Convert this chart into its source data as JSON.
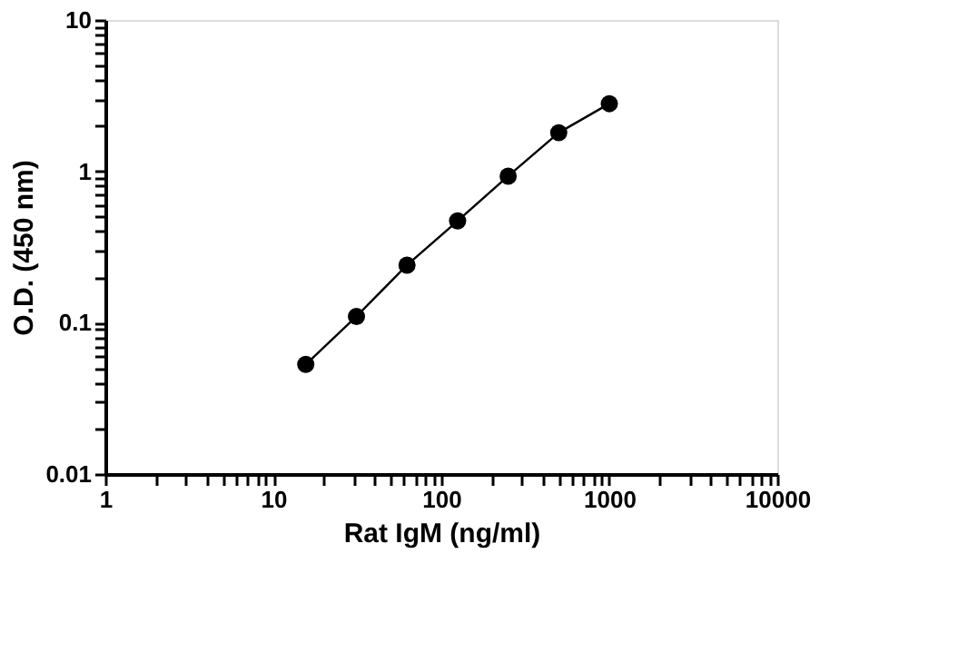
{
  "chart_data": {
    "type": "line",
    "xlabel": "Rat IgM (ng/ml)",
    "ylabel": "O.D. (450 nm)",
    "log": "xy",
    "grid": false,
    "marker": "circle",
    "line_style": "solid",
    "x": [
      15.6,
      31.25,
      62.5,
      125,
      250,
      500,
      1000
    ],
    "series": [
      {
        "color": "#000000",
        "values": [
          0.053,
          0.11,
          0.24,
          0.47,
          0.93,
          1.8,
          2.8
        ]
      }
    ],
    "xlim": [
      1,
      10000
    ],
    "ylim": [
      0.01,
      10
    ],
    "xticks": [
      1,
      {
        "value": 2,
        "label": null
      },
      {
        "value": 3,
        "label": null
      },
      {
        "value": 4,
        "label": null
      },
      {
        "value": 5,
        "label": null
      },
      {
        "value": 6,
        "label": null
      },
      {
        "value": 7,
        "label": null
      },
      {
        "value": 8,
        "label": null
      },
      {
        "value": 9,
        "label": null
      },
      10,
      {
        "value": 20,
        "label": null
      },
      {
        "value": 30,
        "label": null
      },
      {
        "value": 40,
        "label": null
      },
      {
        "value": 50,
        "label": null
      },
      {
        "value": 60,
        "label": null
      },
      {
        "value": 70,
        "label": null
      },
      {
        "value": 80,
        "label": null
      },
      {
        "value": 90,
        "label": null
      },
      100,
      {
        "value": 200,
        "label": null
      },
      {
        "value": 300,
        "label": null
      },
      {
        "value": 400,
        "label": null
      },
      {
        "value": 500,
        "label": null
      },
      {
        "value": 600,
        "label": null
      },
      {
        "value": 700,
        "label": null
      },
      {
        "value": 800,
        "label": null
      },
      {
        "value": 900,
        "label": null
      },
      1000,
      {
        "value": 2000,
        "label": null
      },
      {
        "value": 3000,
        "label": null
      },
      {
        "value": 4000,
        "label": null
      },
      {
        "value": 5000,
        "label": null
      },
      {
        "value": 6000,
        "label": null
      },
      {
        "value": 7000,
        "label": null
      },
      {
        "value": 8000,
        "label": null
      },
      {
        "value": 9000,
        "label": null
      },
      10000
    ],
    "yticks": [
      0.01,
      {
        "value": 0.02,
        "label": null
      },
      {
        "value": 0.03,
        "label": null
      },
      {
        "value": 0.04,
        "label": null
      },
      {
        "value": 0.05,
        "label": null
      },
      {
        "value": 0.06,
        "label": null
      },
      {
        "value": 0.07,
        "label": null
      },
      {
        "value": 0.08,
        "label": null
      },
      {
        "value": 0.09,
        "label": null
      },
      0.1,
      {
        "value": 0.2,
        "label": null
      },
      {
        "value": 0.3,
        "label": null
      },
      {
        "value": 0.4,
        "label": null
      },
      {
        "value": 0.5,
        "label": null
      },
      {
        "value": 0.6,
        "label": null
      },
      {
        "value": 0.7,
        "label": null
      },
      {
        "value": 0.8,
        "label": null
      },
      {
        "value": 0.9,
        "label": null
      },
      1,
      {
        "value": 2,
        "label": null
      },
      {
        "value": 3,
        "label": null
      },
      {
        "value": 4,
        "label": null
      },
      {
        "value": 5,
        "label": null
      },
      {
        "value": 6,
        "label": null
      },
      {
        "value": 7,
        "label": null
      },
      {
        "value": 8,
        "label": null
      },
      {
        "value": 9,
        "label": null
      },
      10
    ]
  }
}
